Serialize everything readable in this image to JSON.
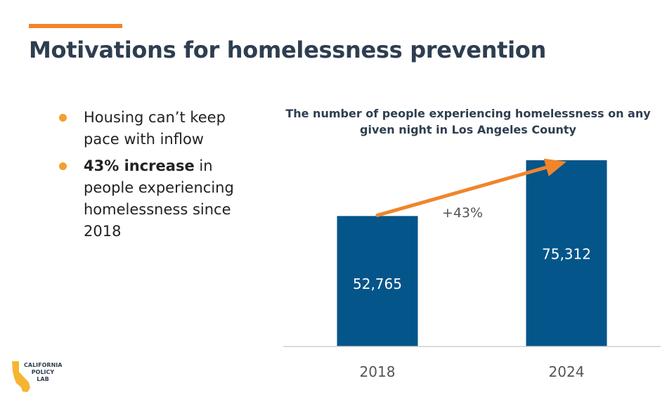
{
  "slide": {
    "title": "Motivations for homelessness prevention",
    "accent_color": "#F0852B"
  },
  "bullets": [
    {
      "text": "Housing can’t keep pace with inflow"
    },
    {
      "bold": "43% increase",
      "text": " in people experiencing homelessness since 2018"
    }
  ],
  "chart_data": {
    "type": "bar",
    "title": "The number of people experiencing homelessness on any given night in Los Angeles County",
    "categories": [
      "2018",
      "2024"
    ],
    "values": [
      52765,
      75312
    ],
    "value_labels": [
      "52,765",
      "75,312"
    ],
    "annotation": "+43%",
    "bar_color": "#04558A",
    "arrow_color": "#F0852B",
    "grid": false,
    "xlabel": "",
    "ylabel": ""
  },
  "logo": {
    "name": "california-policy-lab-logo",
    "lines": [
      "CALIFORNIA",
      "POLICY",
      "LAB"
    ]
  }
}
